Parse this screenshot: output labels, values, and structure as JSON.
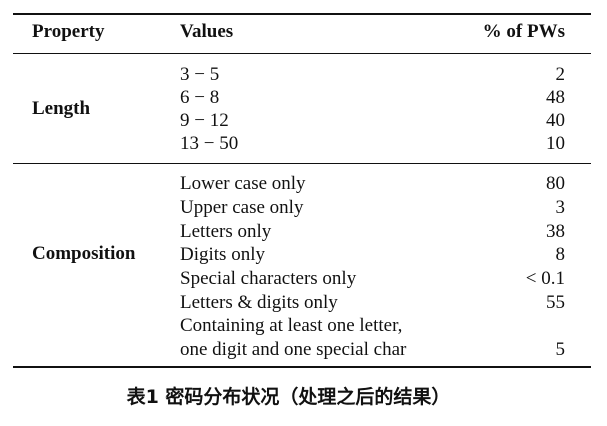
{
  "table": {
    "headers": {
      "property": "Property",
      "values": "Values",
      "percent": "% of PWs"
    },
    "groups": [
      {
        "property": "Length",
        "rows": [
          {
            "value": "3 − 5",
            "percent": "2"
          },
          {
            "value": "6 − 8",
            "percent": "48"
          },
          {
            "value": "9 − 12",
            "percent": "40"
          },
          {
            "value": "13 − 50",
            "percent": "10"
          }
        ]
      },
      {
        "property": "Composition",
        "rows": [
          {
            "value": "Lower case only",
            "percent": "80"
          },
          {
            "value": "Upper case only",
            "percent": "3"
          },
          {
            "value": "Letters only",
            "percent": "38"
          },
          {
            "value": "Digits only",
            "percent": "8"
          },
          {
            "value": "Special characters only",
            "percent": "< 0.1"
          },
          {
            "value": "Letters & digits only",
            "percent": "55"
          },
          {
            "value": "Containing at least one letter,",
            "percent": ""
          },
          {
            "value": "one digit and one special char",
            "percent": "5"
          }
        ]
      }
    ]
  },
  "caption": "表1 密码分布状况（处理之后的结果）"
}
